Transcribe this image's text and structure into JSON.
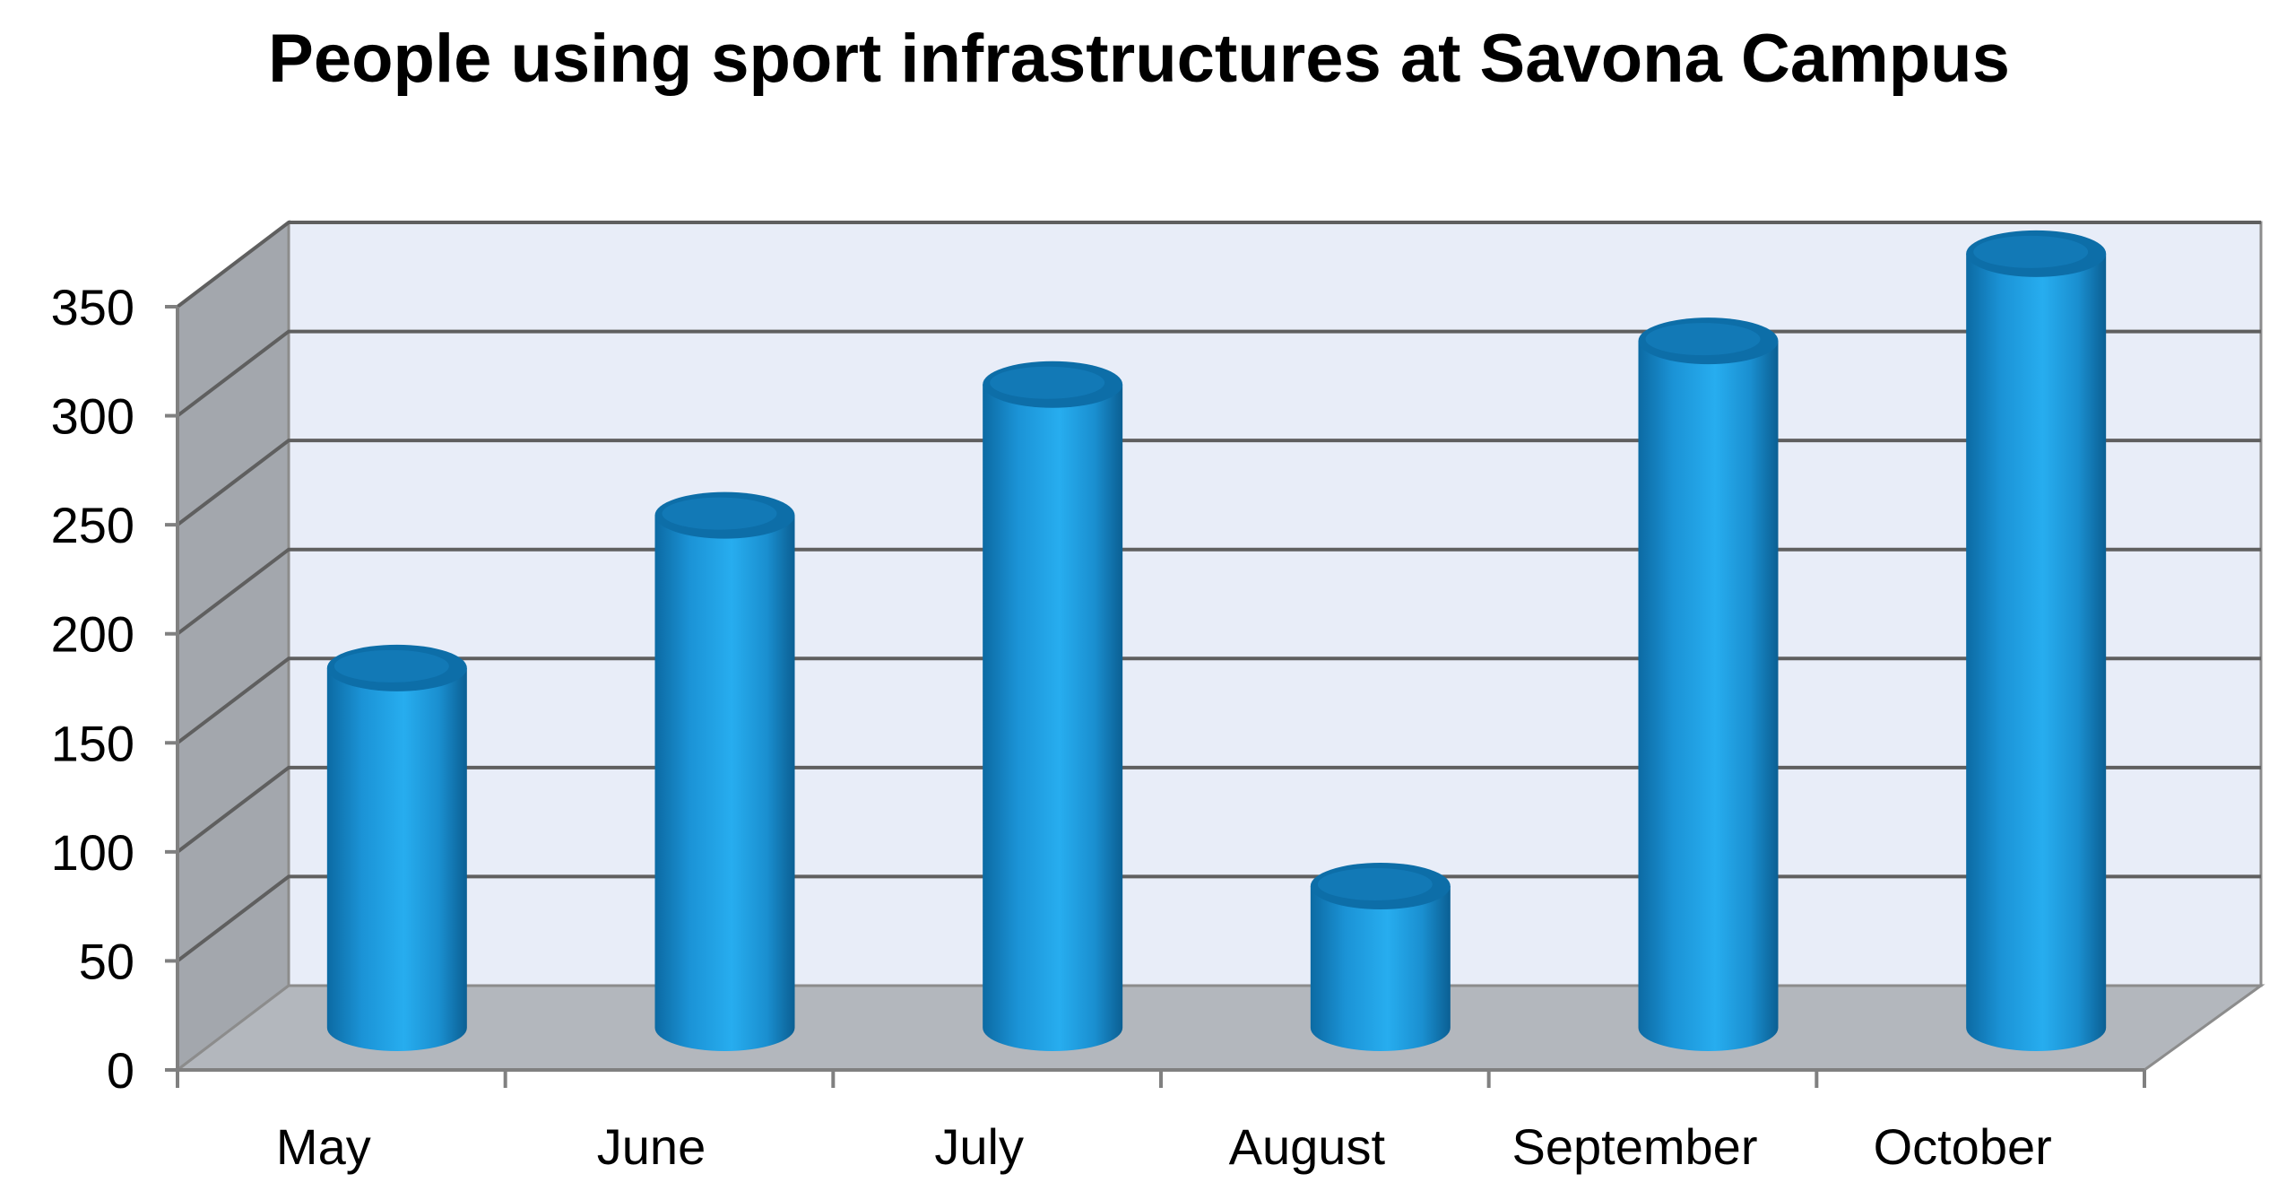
{
  "chart_data": {
    "type": "bar",
    "style": "3d-cylinder",
    "title": "People using sport infrastructures at Savona Campus",
    "xlabel": "",
    "ylabel": "",
    "categories": [
      "May",
      "June",
      "July",
      "August",
      "September",
      "October"
    ],
    "values": [
      165,
      235,
      295,
      65,
      315,
      355
    ],
    "ylim": [
      0,
      350
    ],
    "yticks": [
      "0",
      "50",
      "100",
      "150",
      "200",
      "250",
      "300",
      "350"
    ],
    "grid": true,
    "legend": "none",
    "colors": {
      "bar": "#1e9fe0",
      "bar_dark": "#0d6ea8",
      "back_wall": "#e8edf8",
      "side_wall": "#a3a7ad",
      "floor": "#b3b7bd",
      "gridline": "#5f5f5f"
    }
  }
}
